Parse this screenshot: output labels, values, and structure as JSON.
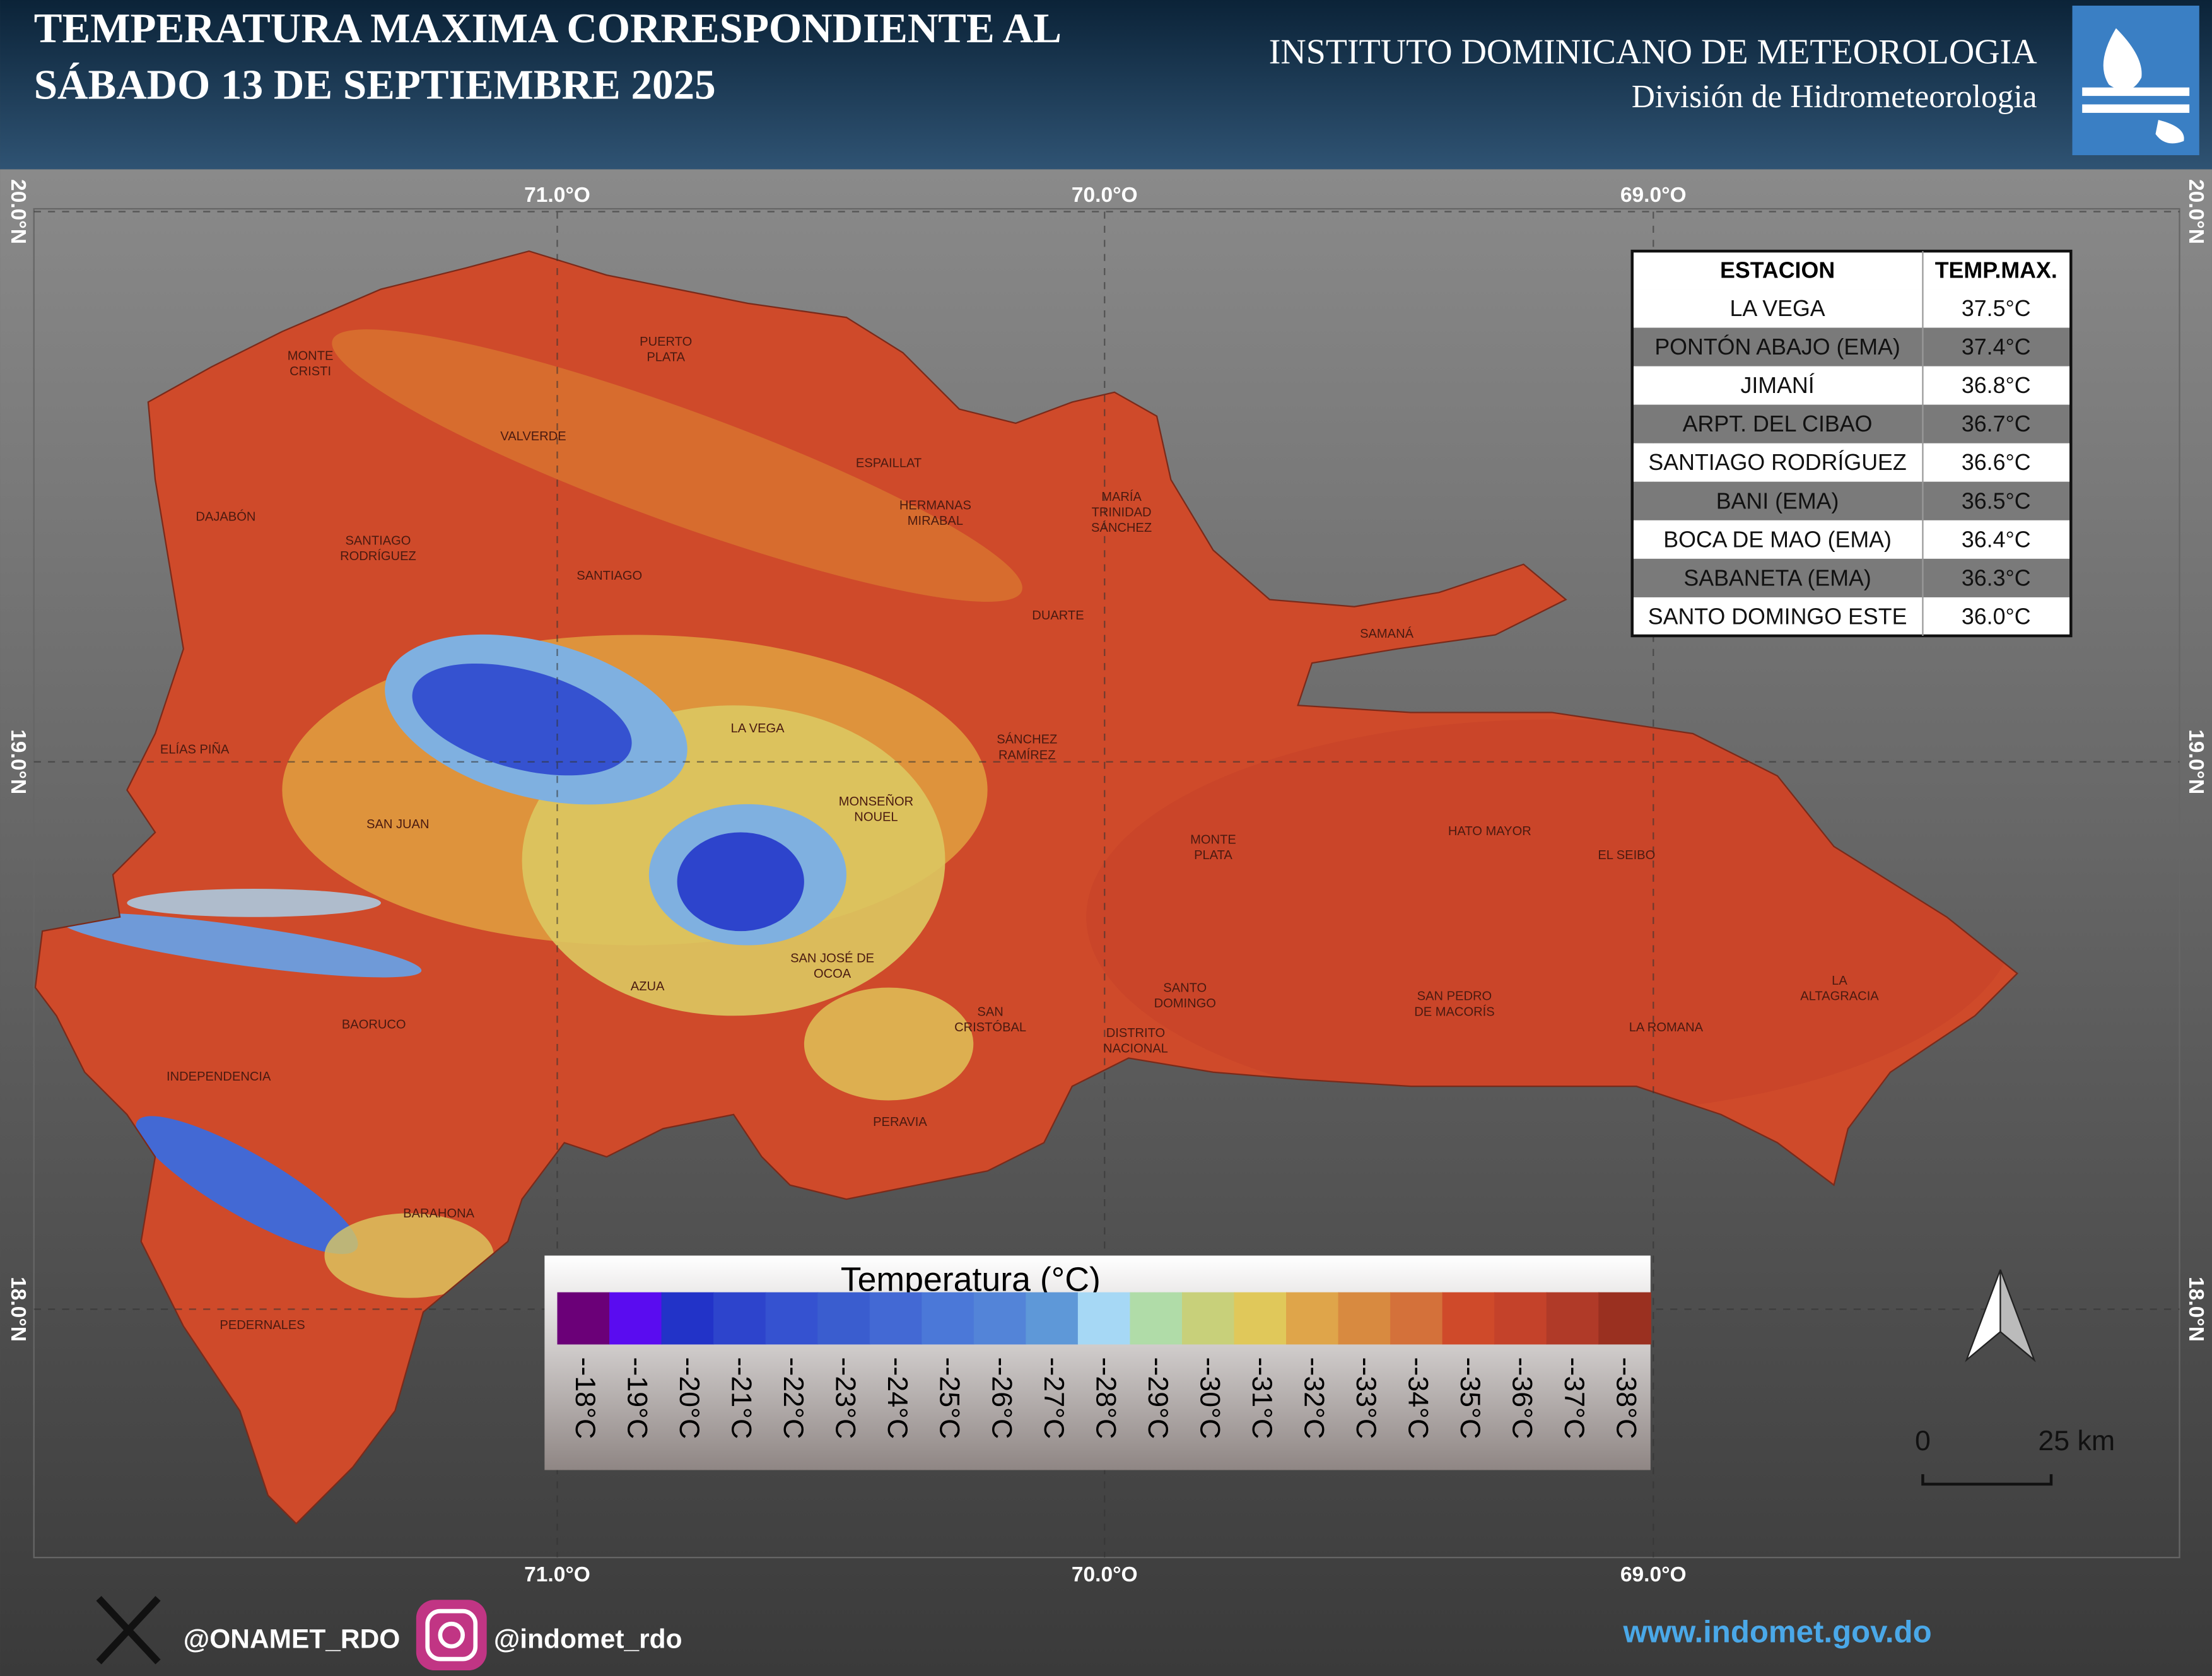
{
  "header": {
    "title_lines": [
      "TEMPERATURA MAXIMA CORRESPONDIENTE AL",
      "SÁBADO 13 DE SEPTIEMBRE 2025"
    ],
    "institute": "INSTITUTO DOMINICANO DE METEOROLOGIA",
    "division": "División de Hidrometeorologia"
  },
  "map": {
    "longitude_labels": [
      "71.0°O",
      "70.0°O",
      "69.0°O"
    ],
    "latitude_labels": [
      "20.0°N",
      "19.0°N",
      "18.0°N"
    ],
    "provinces": [
      [
        "MONTE",
        "CRISTI"
      ],
      [
        "PUERTO",
        "PLATA"
      ],
      [
        "VALVERDE"
      ],
      [
        "ESPAILLAT"
      ],
      [
        "HERMANAS",
        "MIRABAL"
      ],
      [
        "MARÍA",
        "TRINIDAD",
        "SÁNCHEZ"
      ],
      [
        "DAJABÓN"
      ],
      [
        "SANTIAGO",
        "RODRÍGUEZ"
      ],
      [
        "SANTIAGO"
      ],
      [
        "DUARTE"
      ],
      [
        "SAMANÁ"
      ],
      [
        "LA VEGA"
      ],
      [
        "ELÍAS PIÑA"
      ],
      [
        "SÁNCHEZ",
        "RAMÍREZ"
      ],
      [
        "MONSEÑOR",
        "NOUEL"
      ],
      [
        "SAN JUAN"
      ],
      [
        "MONTE",
        "PLATA"
      ],
      [
        "HATO MAYOR"
      ],
      [
        "EL SEIBO"
      ],
      [
        "SAN JOSÉ DE",
        "OCOA"
      ],
      [
        "AZUA"
      ],
      [
        "LA",
        "ALTAGRACIA"
      ],
      [
        "SANTO",
        "DOMINGO"
      ],
      [
        "SAN PEDRO",
        "DE MACORÍS"
      ],
      [
        "SAN",
        "CRISTÓBAL"
      ],
      [
        "BAORUCO"
      ],
      [
        "LA ROMANA"
      ],
      [
        "DISTRITO",
        "NACIONAL"
      ],
      [
        "INDEPENDENCIA"
      ],
      [
        "PERAVIA"
      ],
      [
        "BARAHONA"
      ],
      [
        "PEDERNALES"
      ]
    ]
  },
  "table": {
    "header": [
      "ESTACION",
      "TEMP.MAX."
    ],
    "rows": [
      [
        "LA VEGA",
        "37.5°C"
      ],
      [
        "PONTÓN ABAJO (EMA)",
        "37.4°C"
      ],
      [
        "JIMANÍ",
        "36.8°C"
      ],
      [
        "ARPT. DEL CIBAO",
        "36.7°C"
      ],
      [
        "SANTIAGO RODRÍGUEZ",
        "36.6°C"
      ],
      [
        "BANI (EMA)",
        "36.5°C"
      ],
      [
        "BOCA DE MAO (EMA)",
        "36.4°C"
      ],
      [
        "SABANETA (EMA)",
        "36.3°C"
      ],
      [
        "SANTO DOMINGO ESTE",
        "36.0°C"
      ]
    ]
  },
  "legend": {
    "title": "Temperatura (°C)",
    "classes": [
      {
        "label": "--18°C",
        "color": "#6b0078"
      },
      {
        "label": "--19°C",
        "color": "#5a0cf0"
      },
      {
        "label": "--20°C",
        "color": "#2233c8"
      },
      {
        "label": "--21°C",
        "color": "#2d44cc"
      },
      {
        "label": "--22°C",
        "color": "#3552d0"
      },
      {
        "label": "--23°C",
        "color": "#3a5dcf"
      },
      {
        "label": "--24°C",
        "color": "#4369d4"
      },
      {
        "label": "--25°C",
        "color": "#4b78d8"
      },
      {
        "label": "--26°C",
        "color": "#5384d8"
      },
      {
        "label": "--27°C",
        "color": "#5e98d8"
      },
      {
        "label": "--28°C",
        "color": "#a6d8f5"
      },
      {
        "label": "--29°C",
        "color": "#b0dca8"
      },
      {
        "label": "--30°C",
        "color": "#c8d07a"
      },
      {
        "label": "--31°C",
        "color": "#e0c85a"
      },
      {
        "label": "--32°C",
        "color": "#dfa54a"
      },
      {
        "label": "--33°C",
        "color": "#d88a40"
      },
      {
        "label": "--34°C",
        "color": "#d4713a"
      },
      {
        "label": "--35°C",
        "color": "#cf4a2a"
      },
      {
        "label": "--36°C",
        "color": "#c4422a"
      },
      {
        "label": "--37°C",
        "color": "#b03a28"
      },
      {
        "label": "--38°C",
        "color": "#9a3020"
      }
    ]
  },
  "scale": {
    "start": "0",
    "end": "25 km"
  },
  "footer": {
    "x_handle": "@ONAMET_RDO",
    "instagram": "@indomet_rdo",
    "website": "www.indomet.gov.do"
  }
}
